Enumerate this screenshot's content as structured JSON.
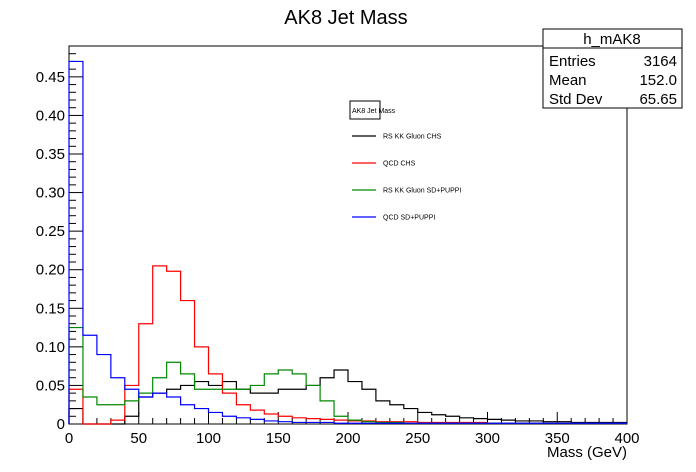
{
  "chart_data": {
    "type": "line",
    "title": "AK8 Jet Mass",
    "xlabel": "Mass (GeV)",
    "ylabel": "",
    "xlim": [
      0,
      400
    ],
    "ylim": [
      0,
      0.49
    ],
    "xticks": [
      "0",
      "50",
      "100",
      "150",
      "200",
      "250",
      "300",
      "350",
      "400"
    ],
    "yticks": [
      "0",
      "0.05",
      "0.10",
      "0.15",
      "0.20",
      "0.25",
      "0.30",
      "0.35",
      "0.40",
      "0.45"
    ],
    "bin_edges": [
      0,
      10,
      20,
      30,
      40,
      50,
      60,
      70,
      80,
      90,
      100,
      110,
      120,
      130,
      140,
      150,
      160,
      170,
      180,
      190,
      200,
      210,
      220,
      230,
      240,
      250,
      260,
      270,
      280,
      290,
      300,
      310,
      320,
      330,
      340,
      350,
      360,
      370,
      380,
      390,
      400
    ],
    "legend": {
      "title": "AK8 Jet Mass",
      "placement": "top-center"
    },
    "series": [
      {
        "name": "RS KK Gluon CHS",
        "color": "#000000",
        "values": [
          0.02,
          0,
          0,
          0,
          0.01,
          0.035,
          0.04,
          0.045,
          0.05,
          0.055,
          0.05,
          0.055,
          0.045,
          0.04,
          0.04,
          0.045,
          0.045,
          0.05,
          0.06,
          0.07,
          0.055,
          0.045,
          0.03,
          0.025,
          0.02,
          0.015,
          0.012,
          0.01,
          0.008,
          0.007,
          0.006,
          0.005,
          0.004,
          0.004,
          0.003,
          0.003,
          0.002,
          0.002,
          0.002,
          0.002
        ]
      },
      {
        "name": "QCD CHS",
        "color": "#ff0000",
        "values": [
          0.045,
          0,
          0,
          0.005,
          0.05,
          0.13,
          0.205,
          0.198,
          0.16,
          0.1,
          0.065,
          0.04,
          0.025,
          0.018,
          0.013,
          0.01,
          0.008,
          0.007,
          0.006,
          0.005,
          0.004,
          0.004,
          0.003,
          0.003,
          0.003,
          0.002,
          0.002,
          0.002,
          0.002,
          0.002,
          0.001,
          0.001,
          0.001,
          0.001,
          0.001,
          0.001,
          0.001,
          0.001,
          0.001,
          0.001
        ]
      },
      {
        "name": "RS KK Gluon SD+PUPPI",
        "color": "#008800",
        "values": [
          0.125,
          0.035,
          0.025,
          0.025,
          0.03,
          0.04,
          0.06,
          0.08,
          0.065,
          0.045,
          0.045,
          0.045,
          0.045,
          0.05,
          0.065,
          0.07,
          0.065,
          0.05,
          0.03,
          0.01,
          0.005,
          0.003,
          0.002,
          0.002,
          0.001,
          0.001,
          0.001,
          0.001,
          0.001,
          0.001,
          0.001,
          0.001,
          0.001,
          0.001,
          0.001,
          0.001,
          0.001,
          0.001,
          0.001,
          0.001
        ]
      },
      {
        "name": "QCD SD+PUPPI",
        "color": "#0000ff",
        "values": [
          0.47,
          0.115,
          0.09,
          0.06,
          0.045,
          0.035,
          0.04,
          0.035,
          0.025,
          0.02,
          0.015,
          0.01,
          0.008,
          0.006,
          0.004,
          0.003,
          0.002,
          0.002,
          0.002,
          0.001,
          0.001,
          0.001,
          0.001,
          0.001,
          0.001,
          0.001,
          0.001,
          0.001,
          0.001,
          0.001,
          0.001,
          0.001,
          0.001,
          0.001,
          0.001,
          0.001,
          0.001,
          0.001,
          0.001,
          0.001
        ]
      }
    ],
    "stats": {
      "name": "h_mAK8",
      "rows": [
        {
          "label": "Entries",
          "value": "3164"
        },
        {
          "label": "Mean",
          "value": "152.0"
        },
        {
          "label": "Std Dev",
          "value": "65.65"
        }
      ],
      "placement": "top-right"
    }
  }
}
